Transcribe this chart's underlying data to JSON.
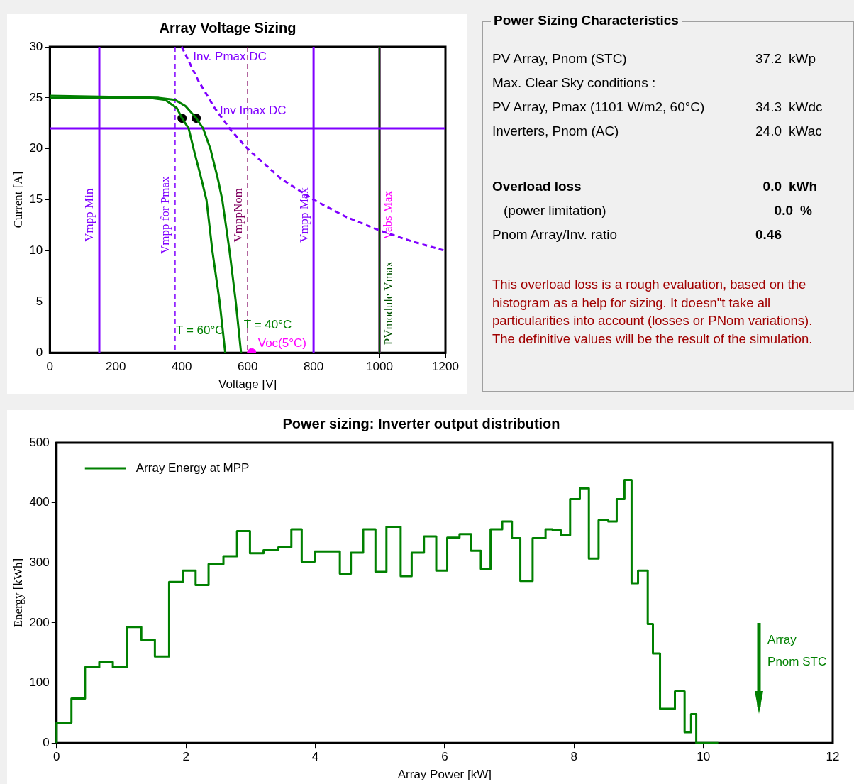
{
  "chart_data": [
    {
      "type": "line",
      "title": "Array Voltage Sizing",
      "xlabel": "Voltage [V]",
      "ylabel": "Current [A]",
      "xlim": [
        0,
        1200
      ],
      "xticks": [
        0,
        200,
        400,
        600,
        800,
        1000,
        1200
      ],
      "ylim": [
        0,
        30
      ],
      "yticks": [
        0,
        5,
        10,
        15,
        20,
        25,
        30
      ],
      "series": [
        {
          "name": "T = 60°C",
          "type": "line",
          "color": "#008000",
          "x": [
            0,
            300,
            350,
            385,
            401,
            421,
            436,
            460,
            475,
            493,
            515,
            532
          ],
          "values": [
            25,
            25,
            24.8,
            24,
            23,
            22,
            20,
            17,
            15,
            10,
            5,
            0
          ]
        },
        {
          "name": "T = 40°C",
          "type": "line",
          "color": "#008000",
          "x": [
            0,
            330,
            380,
            411,
            444,
            465,
            487,
            510,
            523,
            545,
            564,
            580
          ],
          "values": [
            25.2,
            25,
            24.8,
            24.2,
            23,
            22,
            20,
            17,
            15,
            10,
            5,
            0
          ]
        },
        {
          "name": "Inv. Pmax DC",
          "type": "line",
          "line_style": "dashed",
          "color": "#8000ff",
          "x": [
            400,
            450,
            500,
            550,
            600,
            700,
            800,
            900,
            1000,
            1100,
            1200
          ],
          "values": [
            30,
            26.7,
            24,
            21.8,
            20,
            17.1,
            15,
            13.3,
            12,
            10.9,
            10
          ]
        },
        {
          "type": "scatter",
          "color": "#000000",
          "x": [
            401,
            444
          ],
          "values": [
            23,
            23
          ]
        },
        {
          "name": "Voc(5°C)",
          "type": "scatter",
          "color": "#ff00ff",
          "x": [
            612
          ],
          "values": [
            0
          ]
        }
      ],
      "ref_lines": [
        {
          "axis": "x",
          "value": 150,
          "label": "Vmpp Min",
          "color": "#8000ff"
        },
        {
          "axis": "x",
          "value": 380,
          "label": "Vmpp for Pmax",
          "color": "#8000ff",
          "line_style": "dashed"
        },
        {
          "axis": "x",
          "value": 600,
          "label": "VmppNom",
          "color": "#800060",
          "line_style": "dashed"
        },
        {
          "axis": "x",
          "value": 800,
          "label": "Vmpp Max",
          "color": "#8000ff"
        },
        {
          "axis": "x",
          "value": 1000,
          "label": "Vabs Max",
          "color": "#ff00ff"
        },
        {
          "axis": "x",
          "value": 1000,
          "label": "PVmodule Vmax",
          "color": "#005000"
        },
        {
          "axis": "y",
          "value": 22,
          "label": "Inv Imax DC",
          "color": "#8000ff"
        }
      ]
    },
    {
      "type": "other",
      "title": "Power Sizing Characteristics",
      "annotations": [
        "PV Array, Pnom (STC)\t37.2\tkWp",
        "Max. Clear Sky conditions :",
        "PV Array, Pmax (1101 W/m2, 60°C)\t34.3\tkWdc",
        "Inverters, Pnom (AC)\t24.0\tkWac",
        "Overload loss\t0.0\tkWh",
        "(power limitation)\t0.0\t%",
        "Pnom Array/Inv. ratio\t0.46\t",
        "This overload loss is a rough evaluation, based on the histogram as a help for sizing. It doesn\"t take all particularities into account (losses or PNom variations).",
        "The definitive values will be the result of the simulation."
      ]
    },
    {
      "type": "step",
      "title": "Power sizing: Inverter output distribution",
      "xlabel": "Array Power [kW]",
      "ylabel": "Energy [kWh]",
      "xlim": [
        0,
        12
      ],
      "xticks": [
        0,
        2,
        4,
        6,
        8,
        10,
        12
      ],
      "ylim": [
        0,
        500
      ],
      "yticks": [
        0,
        100,
        200,
        300,
        400,
        500
      ],
      "legend": "top left",
      "series": [
        {
          "name": "Array Energy at MPP",
          "color": "#008000",
          "x": [
            0,
            0.23,
            0.44,
            0.66,
            0.87,
            1.09,
            1.31,
            1.52,
            1.74,
            1.95,
            2.15,
            2.35,
            2.58,
            2.79,
            2.99,
            3.2,
            3.43,
            3.63,
            3.79,
            3.99,
            4.38,
            4.55,
            4.74,
            4.93,
            5.1,
            5.32,
            5.49,
            5.68,
            5.87,
            6.04,
            6.23,
            6.41,
            6.56,
            6.71,
            6.89,
            7.04,
            7.17,
            7.36,
            7.56,
            7.67,
            7.8,
            7.94,
            8.09,
            8.23,
            8.38,
            8.53,
            8.66,
            8.78,
            8.89,
            8.99,
            9.14,
            9.22,
            9.33,
            9.56,
            9.71,
            9.81,
            9.89,
            10.06,
            10.23
          ],
          "values": [
            0,
            34,
            74,
            126,
            135,
            126,
            193,
            172,
            144,
            268,
            287,
            263,
            298,
            311,
            353,
            316,
            321,
            326,
            356,
            302,
            319,
            282,
            317,
            356,
            285,
            360,
            278,
            317,
            344,
            287,
            342,
            348,
            320,
            290,
            356,
            369,
            341,
            270,
            341,
            356,
            354,
            346,
            406,
            424,
            307,
            371,
            369,
            406,
            438,
            266,
            287,
            198,
            149,
            57,
            86,
            18,
            48,
            0,
            0
          ]
        }
      ],
      "annotations": [
        "Array Pnom STC"
      ]
    }
  ]
}
